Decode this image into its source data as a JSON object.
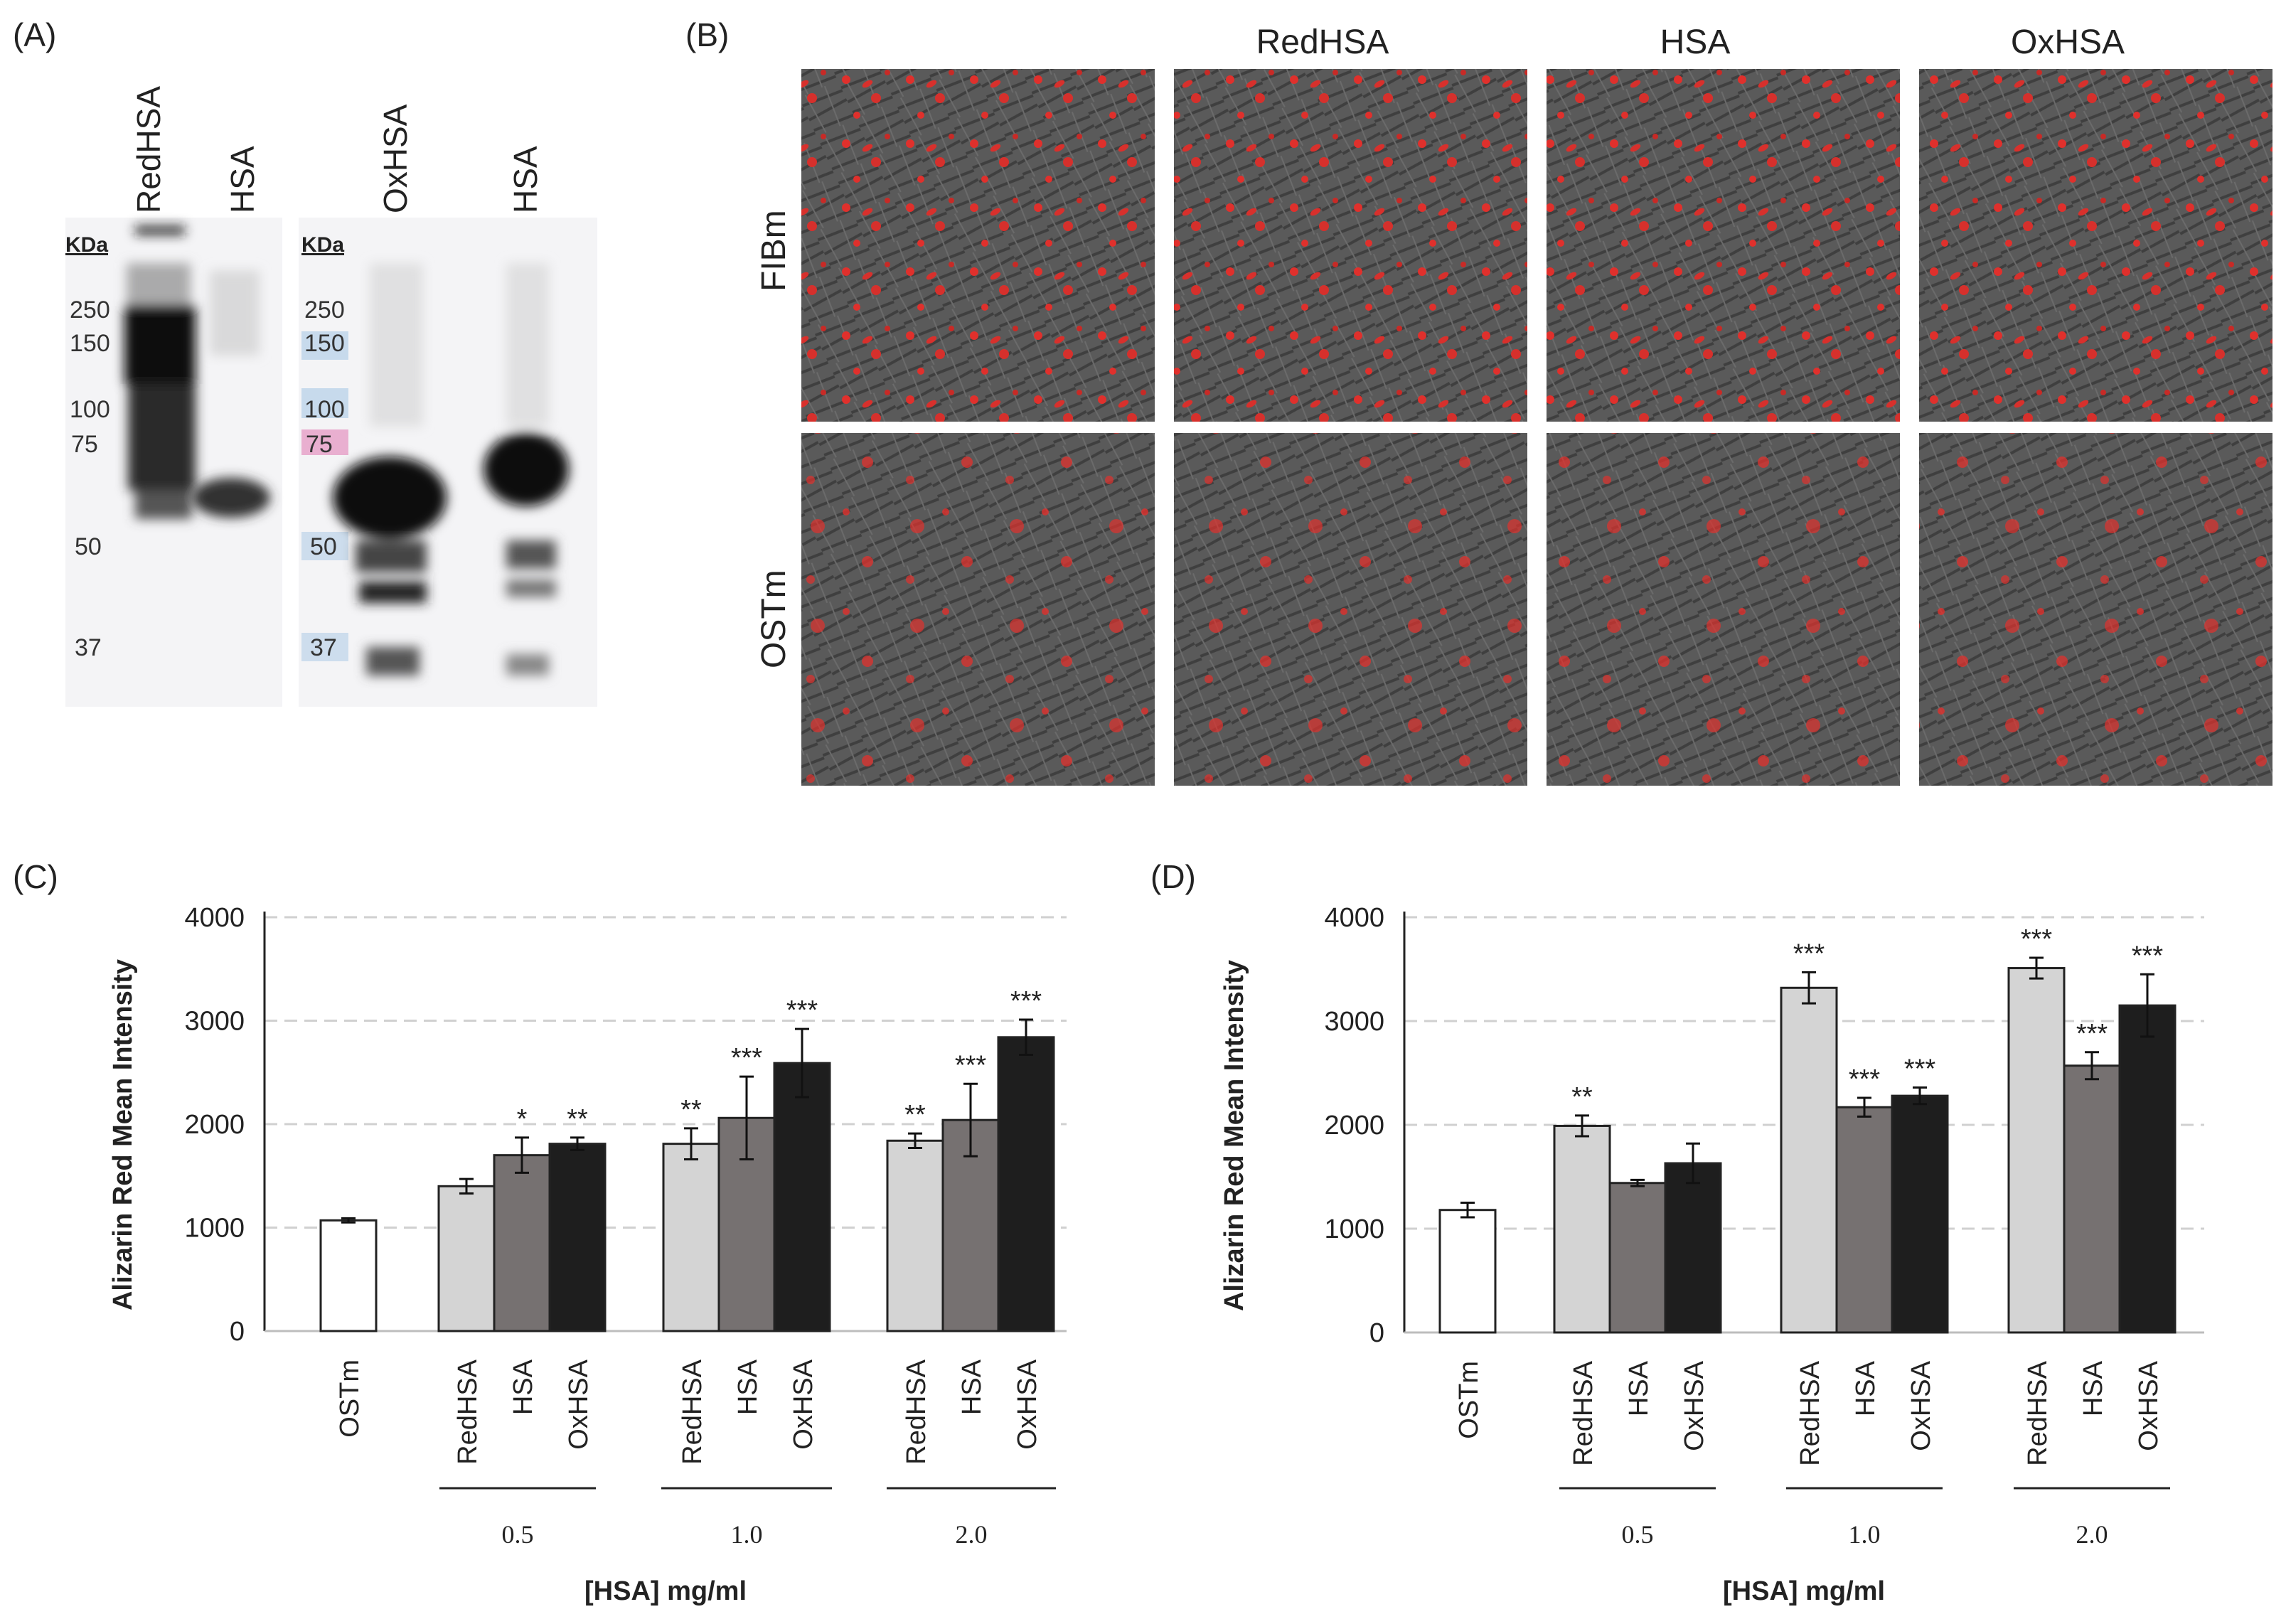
{
  "panels": {
    "A": "(A)",
    "B": "(B)",
    "C": "(C)",
    "D": "(D)"
  },
  "blot": {
    "membrane1": {
      "lanes": [
        "RedHSA",
        "HSA"
      ],
      "kda_label": "KDa",
      "markers": [
        "250",
        "150",
        "100",
        "75",
        "50",
        "37"
      ]
    },
    "membrane2": {
      "lanes": [
        "OxHSA",
        "HSA"
      ],
      "kda_label": "KDa",
      "markers": [
        "250",
        "150",
        "100",
        "75",
        "50",
        "37"
      ]
    }
  },
  "microscopy": {
    "columns": [
      "",
      "RedHSA",
      "HSA",
      "OxHSA"
    ],
    "rows": [
      "FIBm",
      "OSTm"
    ],
    "colors": {
      "background": "#5a5a5a",
      "stain": "#e0302c"
    }
  },
  "chart_data": [
    {
      "type": "bar",
      "panel": "C",
      "ylabel": "Alizarin Red Mean Intensity",
      "xlabel": "[HSA] mg/ml",
      "ylim": [
        0,
        4000
      ],
      "yticks": [
        0,
        1000,
        2000,
        3000,
        4000
      ],
      "grid": "dashed-horizontal",
      "groups": [
        "0.5",
        "1.0",
        "2.0"
      ],
      "bars": [
        {
          "category": "OSTm",
          "group": null,
          "value": 1070,
          "error": 20,
          "sig": "",
          "color": "#ffffff"
        },
        {
          "category": "RedHSA",
          "group": "0.5",
          "value": 1400,
          "error": 70,
          "sig": "",
          "color": "#d4d4d4"
        },
        {
          "category": "HSA",
          "group": "0.5",
          "value": 1700,
          "error": 170,
          "sig": "*",
          "color": "#767171"
        },
        {
          "category": "OxHSA",
          "group": "0.5",
          "value": 1810,
          "error": 60,
          "sig": "**",
          "color": "#1e1e1e"
        },
        {
          "category": "RedHSA",
          "group": "1.0",
          "value": 1810,
          "error": 150,
          "sig": "**",
          "color": "#d4d4d4"
        },
        {
          "category": "HSA",
          "group": "1.0",
          "value": 2060,
          "error": 400,
          "sig": "***",
          "color": "#767171"
        },
        {
          "category": "OxHSA",
          "group": "1.0",
          "value": 2590,
          "error": 330,
          "sig": "***",
          "color": "#1e1e1e"
        },
        {
          "category": "RedHSA",
          "group": "2.0",
          "value": 1840,
          "error": 70,
          "sig": "**",
          "color": "#d4d4d4"
        },
        {
          "category": "HSA",
          "group": "2.0",
          "value": 2040,
          "error": 350,
          "sig": "***",
          "color": "#767171"
        },
        {
          "category": "OxHSA",
          "group": "2.0",
          "value": 2840,
          "error": 170,
          "sig": "***",
          "color": "#1e1e1e"
        }
      ]
    },
    {
      "type": "bar",
      "panel": "D",
      "ylabel": "Alizarin Red Mean Intensity",
      "xlabel": "[HSA] mg/ml",
      "ylim": [
        0,
        4000
      ],
      "yticks": [
        0,
        1000,
        2000,
        3000,
        4000
      ],
      "grid": "dashed-horizontal",
      "groups": [
        "0.5",
        "1.0",
        "2.0"
      ],
      "bars": [
        {
          "category": "OSTm",
          "group": null,
          "value": 1180,
          "error": 70,
          "sig": "",
          "color": "#ffffff"
        },
        {
          "category": "RedHSA",
          "group": "0.5",
          "value": 1990,
          "error": 100,
          "sig": "**",
          "color": "#d4d4d4"
        },
        {
          "category": "HSA",
          "group": "0.5",
          "value": 1440,
          "error": 30,
          "sig": "",
          "color": "#767171"
        },
        {
          "category": "OxHSA",
          "group": "0.5",
          "value": 1630,
          "error": 190,
          "sig": "",
          "color": "#1e1e1e"
        },
        {
          "category": "RedHSA",
          "group": "1.0",
          "value": 3320,
          "error": 150,
          "sig": "***",
          "color": "#d4d4d4"
        },
        {
          "category": "HSA",
          "group": "1.0",
          "value": 2170,
          "error": 90,
          "sig": "***",
          "color": "#767171"
        },
        {
          "category": "OxHSA",
          "group": "1.0",
          "value": 2280,
          "error": 80,
          "sig": "***",
          "color": "#1e1e1e"
        },
        {
          "category": "RedHSA",
          "group": "2.0",
          "value": 3510,
          "error": 100,
          "sig": "***",
          "color": "#d4d4d4"
        },
        {
          "category": "HSA",
          "group": "2.0",
          "value": 2570,
          "error": 130,
          "sig": "***",
          "color": "#767171"
        },
        {
          "category": "OxHSA",
          "group": "2.0",
          "value": 3150,
          "error": 300,
          "sig": "***",
          "color": "#1e1e1e"
        }
      ]
    }
  ]
}
